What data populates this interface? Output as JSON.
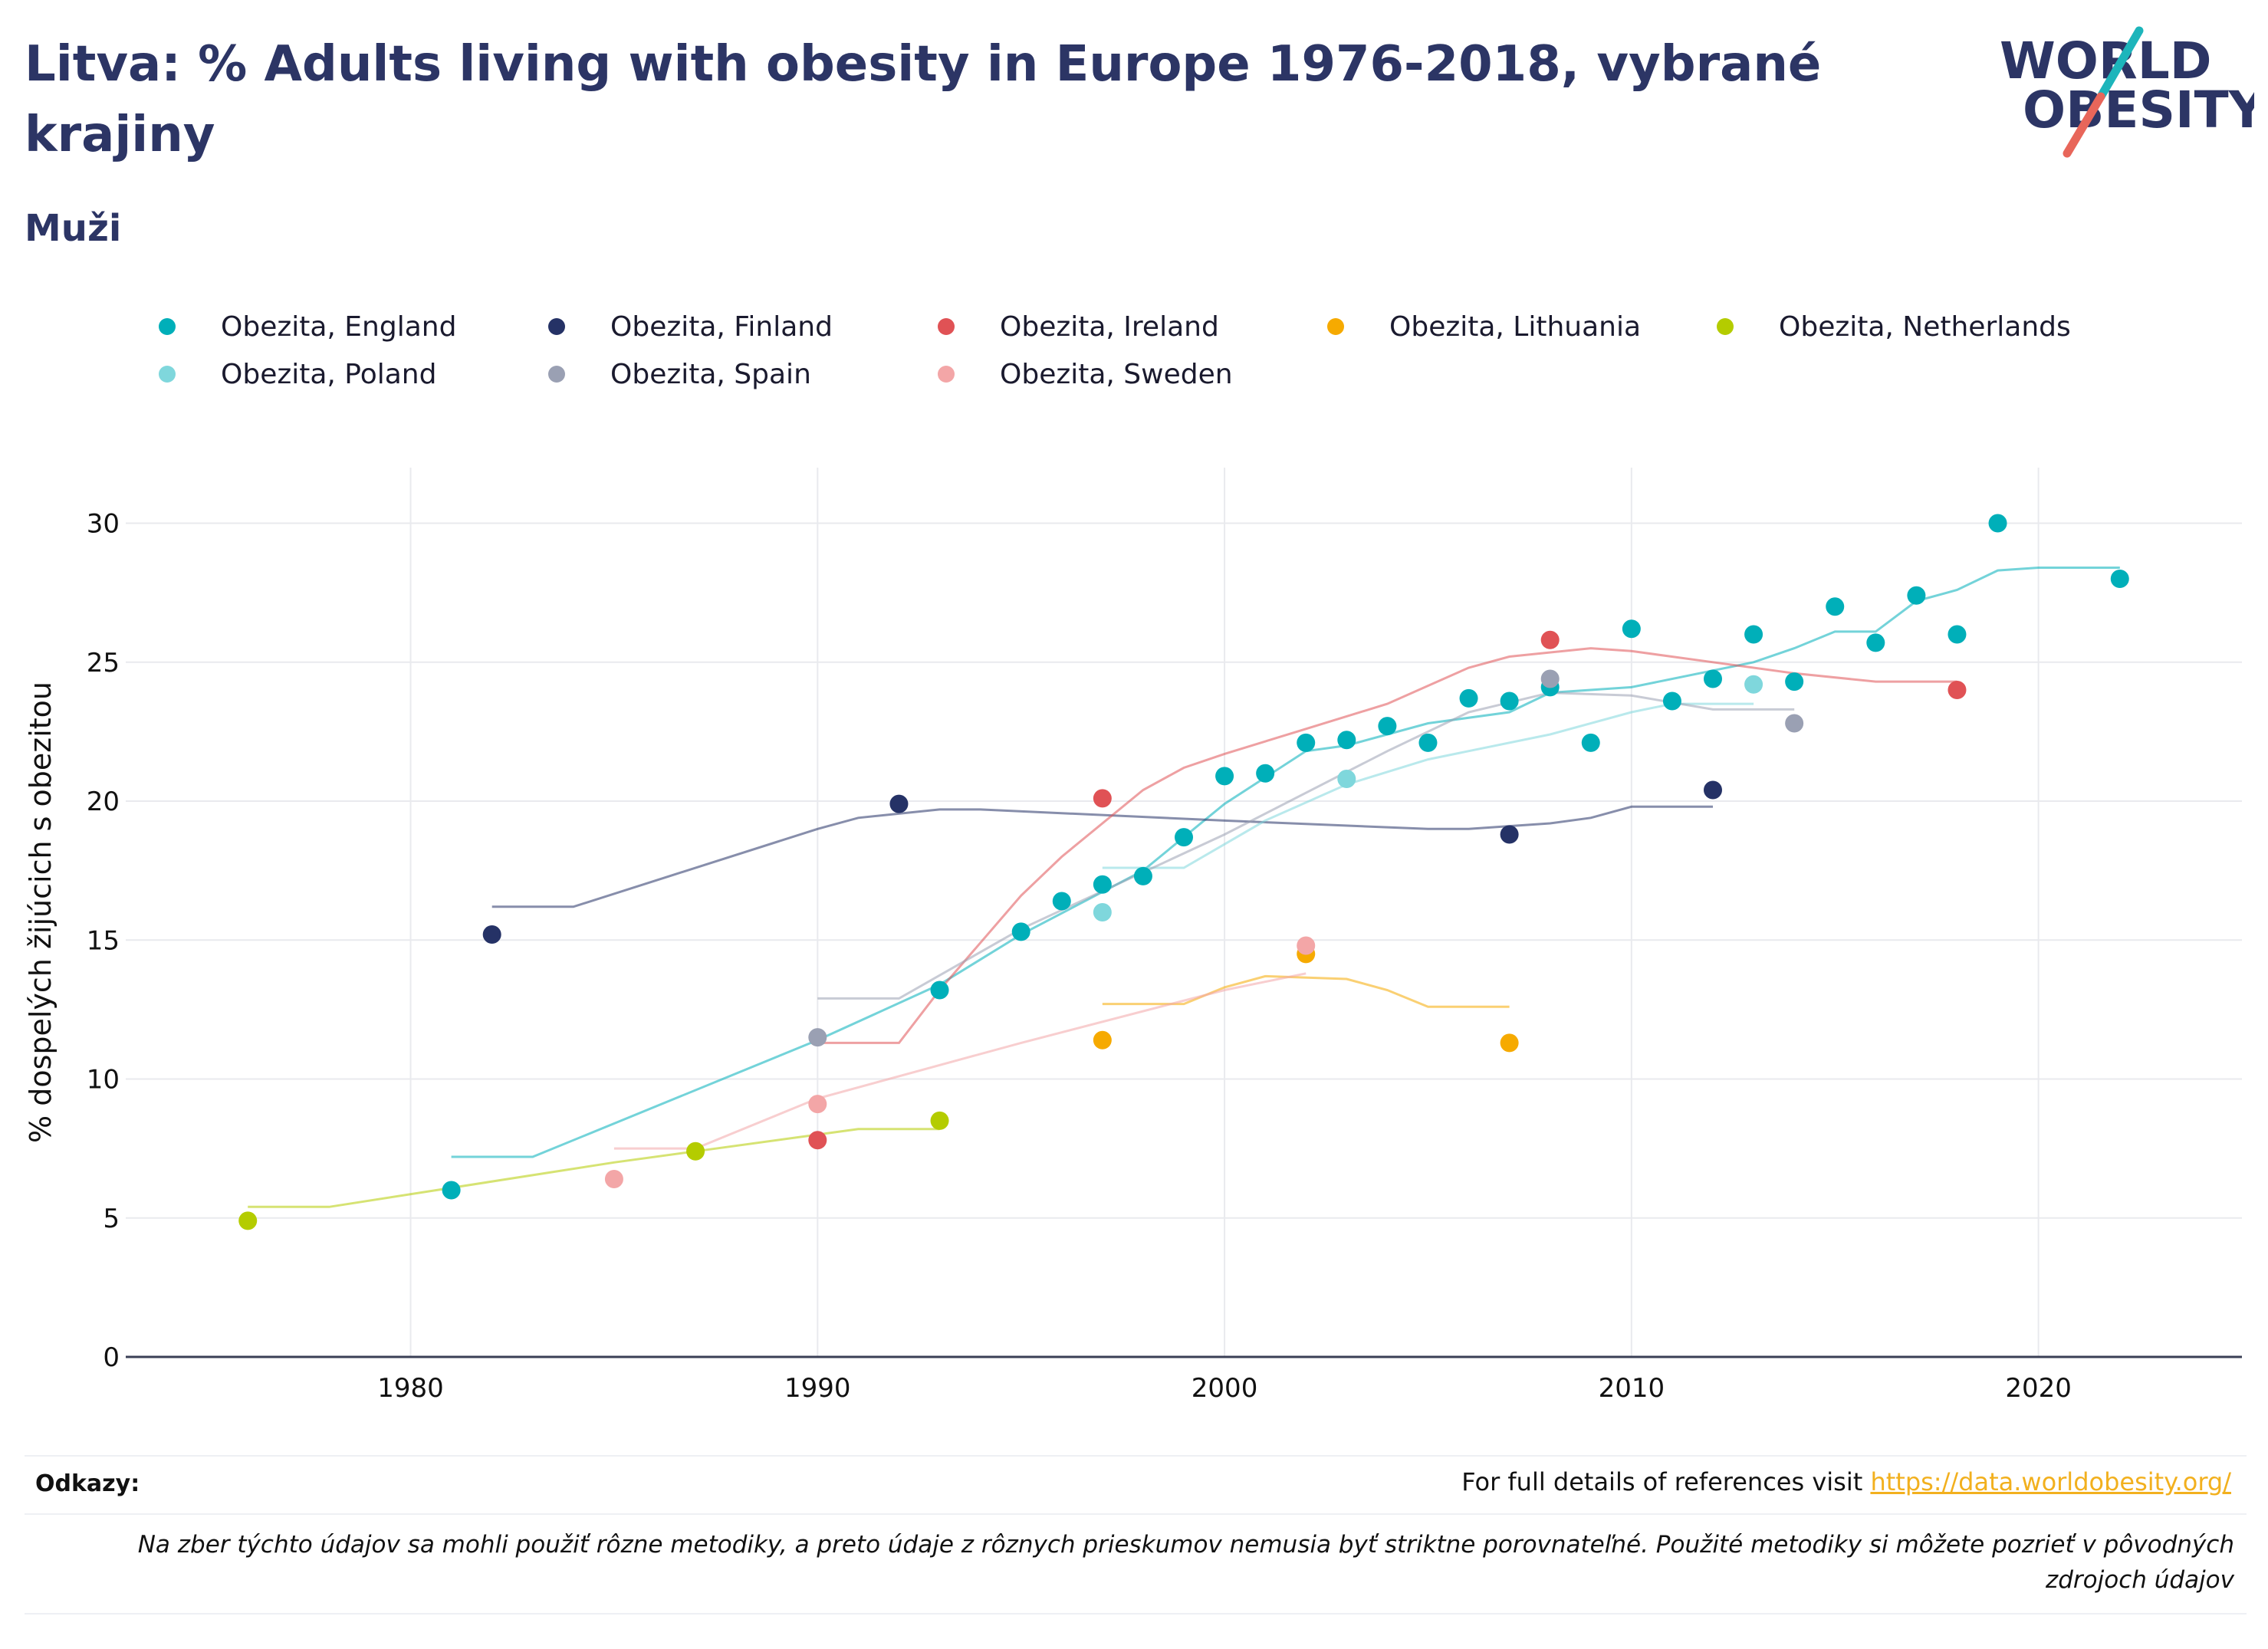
{
  "header": {
    "title": "Litva: % Adults living with obesity in Europe 1976-2018, vybrané krajiny",
    "subtitle": "Muži"
  },
  "logo": {
    "line1": "WORLD",
    "line2": "OBESITY",
    "colors": {
      "text": "#2c3565",
      "slash_teal": "#1db5bb",
      "slash_coral": "#e8665a"
    }
  },
  "chart_data": {
    "type": "scatter",
    "title": "",
    "xlabel": "",
    "ylabel": "% dospelých žijúcich s obezitou",
    "xlim": [
      1973,
      2025
    ],
    "ylim": [
      0,
      32
    ],
    "x_ticks": [
      "1980",
      "1990",
      "2000",
      "2010",
      "2020"
    ],
    "y_ticks": [
      "0",
      "5",
      "10",
      "15",
      "20",
      "25",
      "30"
    ],
    "grid": true,
    "legend_position": "top",
    "series": [
      {
        "name": "Obezita, England",
        "color": "#00afb9",
        "points": [
          [
            1981,
            6.0
          ],
          [
            1993,
            13.2
          ],
          [
            1995,
            15.3
          ],
          [
            1996,
            16.4
          ],
          [
            1997,
            17.0
          ],
          [
            1998,
            17.3
          ],
          [
            1999,
            18.7
          ],
          [
            2000,
            20.9
          ],
          [
            2001,
            21.0
          ],
          [
            2002,
            22.1
          ],
          [
            2003,
            22.2
          ],
          [
            2004,
            22.7
          ],
          [
            2005,
            22.1
          ],
          [
            2006,
            23.7
          ],
          [
            2007,
            23.6
          ],
          [
            2008,
            24.1
          ],
          [
            2009,
            22.1
          ],
          [
            2010,
            26.2
          ],
          [
            2011,
            23.6
          ],
          [
            2012,
            24.4
          ],
          [
            2013,
            26.0
          ],
          [
            2014,
            24.3
          ],
          [
            2015,
            27.0
          ],
          [
            2016,
            25.7
          ],
          [
            2017,
            27.4
          ],
          [
            2018,
            26.0
          ],
          [
            2019,
            30.0
          ],
          [
            2022,
            28.0
          ]
        ],
        "trend": [
          [
            1981,
            7.2
          ],
          [
            1983,
            7.2
          ],
          [
            1990,
            11.4
          ],
          [
            1993,
            13.4
          ],
          [
            1995,
            15.2
          ],
          [
            1998,
            17.5
          ],
          [
            2000,
            19.9
          ],
          [
            2002,
            21.8
          ],
          [
            2003,
            22.0
          ],
          [
            2005,
            22.8
          ],
          [
            2007,
            23.2
          ],
          [
            2008,
            23.9
          ],
          [
            2010,
            24.1
          ],
          [
            2013,
            25.0
          ],
          [
            2014,
            25.5
          ],
          [
            2015,
            26.1
          ],
          [
            2016,
            26.1
          ],
          [
            2017,
            27.2
          ],
          [
            2018,
            27.6
          ],
          [
            2019,
            28.3
          ],
          [
            2020,
            28.4
          ],
          [
            2022,
            28.4
          ]
        ]
      },
      {
        "name": "Obezita, Finland",
        "color": "#253266",
        "points": [
          [
            1982,
            15.2
          ],
          [
            1992,
            19.9
          ],
          [
            2007,
            18.8
          ],
          [
            2012,
            20.4
          ]
        ],
        "trend": [
          [
            1982,
            16.2
          ],
          [
            1984,
            16.2
          ],
          [
            1990,
            19.0
          ],
          [
            1991,
            19.4
          ],
          [
            1993,
            19.7
          ],
          [
            1994,
            19.7
          ],
          [
            2000,
            19.3
          ],
          [
            2005,
            19.0
          ],
          [
            2006,
            19.0
          ],
          [
            2008,
            19.2
          ],
          [
            2009,
            19.4
          ],
          [
            2010,
            19.8
          ],
          [
            2012,
            19.8
          ]
        ]
      },
      {
        "name": "Obezita, Ireland",
        "color": "#e05255",
        "points": [
          [
            1990,
            7.8
          ],
          [
            1997,
            20.1
          ],
          [
            2008,
            25.8
          ],
          [
            2018,
            24.0
          ]
        ],
        "trend": [
          [
            1990,
            11.3
          ],
          [
            1992,
            11.3
          ],
          [
            1993,
            13.2
          ],
          [
            1995,
            16.6
          ],
          [
            1996,
            18.0
          ],
          [
            1998,
            20.4
          ],
          [
            1999,
            21.2
          ],
          [
            2000,
            21.7
          ],
          [
            2002,
            22.6
          ],
          [
            2004,
            23.5
          ],
          [
            2006,
            24.8
          ],
          [
            2007,
            25.2
          ],
          [
            2009,
            25.5
          ],
          [
            2010,
            25.4
          ],
          [
            2012,
            25.0
          ],
          [
            2014,
            24.6
          ],
          [
            2016,
            24.3
          ],
          [
            2018,
            24.3
          ]
        ]
      },
      {
        "name": "Obezita, Lithuania",
        "color": "#f6aa00",
        "points": [
          [
            1997,
            11.4
          ],
          [
            2002,
            14.5
          ],
          [
            2007,
            11.3
          ]
        ],
        "trend": [
          [
            1997,
            12.7
          ],
          [
            1999,
            12.7
          ],
          [
            2000,
            13.3
          ],
          [
            2001,
            13.7
          ],
          [
            2003,
            13.6
          ],
          [
            2004,
            13.2
          ],
          [
            2005,
            12.6
          ],
          [
            2007,
            12.6
          ]
        ]
      },
      {
        "name": "Obezita, Netherlands",
        "color": "#b4cc00",
        "points": [
          [
            1976,
            4.9
          ],
          [
            1987,
            7.4
          ],
          [
            1993,
            8.5
          ]
        ],
        "trend": [
          [
            1976,
            5.4
          ],
          [
            1978,
            5.4
          ],
          [
            1985,
            7.0
          ],
          [
            1987,
            7.4
          ],
          [
            1990,
            8.0
          ],
          [
            1991,
            8.2
          ],
          [
            1993,
            8.2
          ]
        ]
      },
      {
        "name": "Obezita, Poland",
        "color": "#7fd7dc",
        "points": [
          [
            1997,
            16.0
          ],
          [
            2003,
            20.8
          ],
          [
            2013,
            24.2
          ]
        ],
        "trend": [
          [
            1997,
            17.6
          ],
          [
            1999,
            17.6
          ],
          [
            2001,
            19.3
          ],
          [
            2003,
            20.6
          ],
          [
            2005,
            21.5
          ],
          [
            2008,
            22.4
          ],
          [
            2010,
            23.2
          ],
          [
            2011,
            23.5
          ],
          [
            2013,
            23.5
          ]
        ]
      },
      {
        "name": "Obezita, Spain",
        "color": "#9aa0b3",
        "points": [
          [
            1990,
            11.5
          ],
          [
            2008,
            24.4
          ],
          [
            2014,
            22.8
          ]
        ],
        "trend": [
          [
            1990,
            12.9
          ],
          [
            1992,
            12.9
          ],
          [
            1995,
            15.4
          ],
          [
            2000,
            18.8
          ],
          [
            2004,
            21.8
          ],
          [
            2006,
            23.2
          ],
          [
            2008,
            23.9
          ],
          [
            2010,
            23.8
          ],
          [
            2012,
            23.3
          ],
          [
            2014,
            23.3
          ]
        ]
      },
      {
        "name": "Obezita, Sweden",
        "color": "#f3a6a7",
        "points": [
          [
            1985,
            6.4
          ],
          [
            1990,
            9.1
          ],
          [
            2002,
            14.8
          ]
        ],
        "trend": [
          [
            1985,
            7.5
          ],
          [
            1987,
            7.5
          ],
          [
            1990,
            9.3
          ],
          [
            1995,
            11.3
          ],
          [
            2000,
            13.2
          ],
          [
            2002,
            13.8
          ]
        ]
      }
    ]
  },
  "footer": {
    "refs_label": "Odkazy:",
    "refs_text": "For full details of references visit ",
    "refs_link": "https://data.worldobesity.org/",
    "note": "Na zber týchto údajov sa mohli použiť rôzne metodiky, a preto údaje z rôznych prieskumov nemusia byť striktne porovnateľné. Použité metodiky si môžete pozrieť v pôvodných zdrojoch údajov"
  }
}
